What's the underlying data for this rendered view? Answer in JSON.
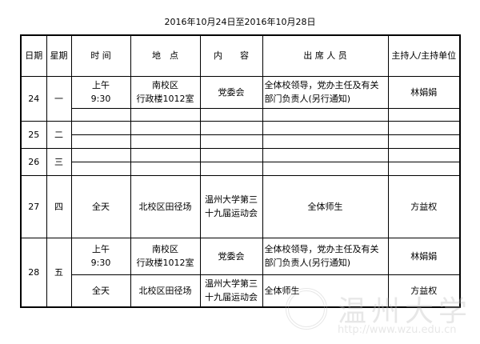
{
  "title": "2016年10月24日至2016年10月28日",
  "headers": [
    "日期",
    "星期",
    "时 间",
    "地　点",
    "内　　容",
    "出 席 人 员",
    "主持人/主持单位"
  ],
  "rows": [
    {
      "date": "24",
      "weekday": "一",
      "entries": [
        {
          "time_1": "上午",
          "time_2": "9:30",
          "place_1": "南校区",
          "place_2": "行政楼1012室",
          "content": "党委会",
          "attendees": "全体校领导，党办主任及有关部门负责人(另行通知)",
          "host": "林娟娟"
        },
        {
          "time_1": "",
          "time_2": "",
          "place_1": "",
          "place_2": "",
          "content": "",
          "attendees": "",
          "host": ""
        }
      ]
    },
    {
      "date": "25",
      "weekday": "二",
      "entries": [
        {},
        {}
      ]
    },
    {
      "date": "26",
      "weekday": "三",
      "entries": [
        {},
        {}
      ]
    },
    {
      "date": "27",
      "weekday": "四",
      "entries": [
        {
          "time_1": "全天",
          "place_1": "北校区田径场",
          "content": "温州大学第三十九届运动会",
          "attendees": "全体师生",
          "host": "方益权"
        }
      ]
    },
    {
      "date": "28",
      "weekday": "五",
      "entries": [
        {
          "time_1": "上午",
          "time_2": "9:30",
          "place_1": "南校区",
          "place_2": "行政楼1012室",
          "content": "党委会",
          "attendees": "全体校领导，党办主任及有关部门负责人(另行通知)",
          "host": "林娟娟"
        },
        {
          "time_1": "全天",
          "place_1": "北校区田径场",
          "content": "温州大学第三十九届运动会",
          "attendees": "全体师生",
          "host": "方益权"
        }
      ]
    }
  ],
  "watermark": {
    "text": "温州大学",
    "url": "http://www.wzu.edu.cn"
  }
}
